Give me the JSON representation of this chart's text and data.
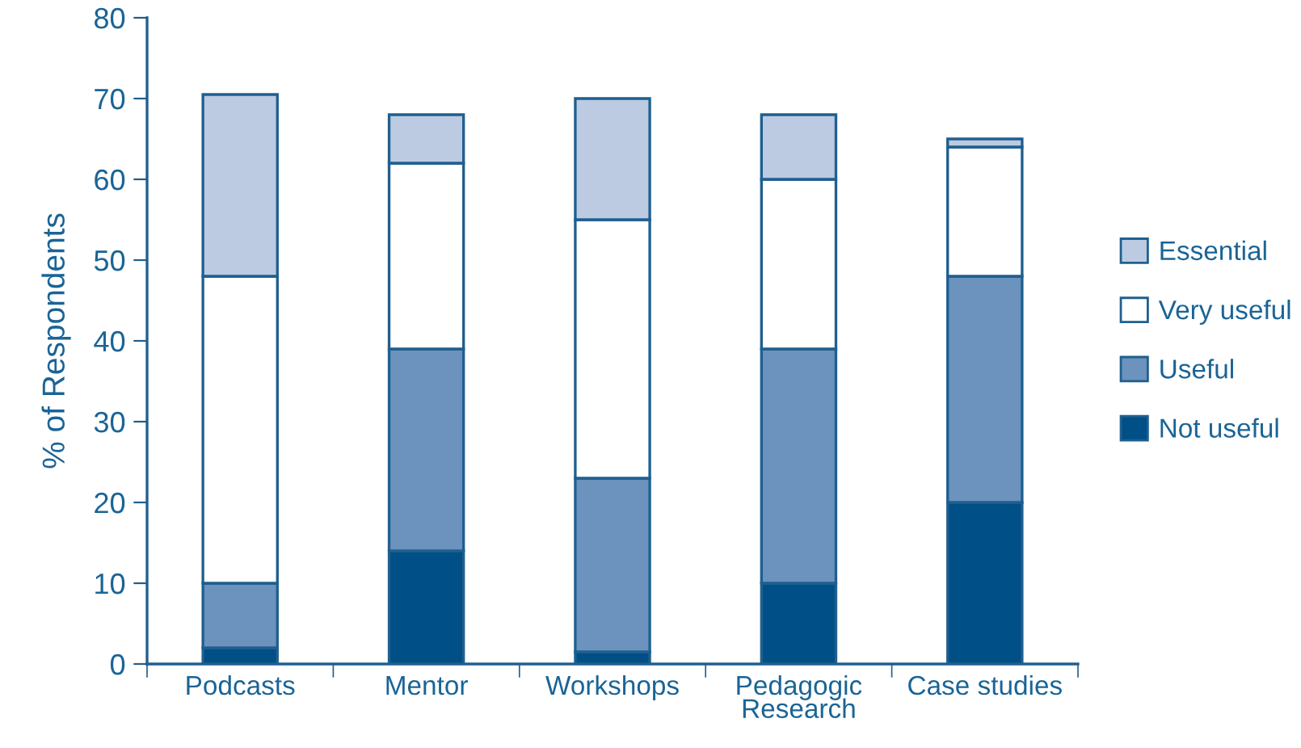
{
  "chart_data": {
    "type": "bar",
    "stacked": true,
    "ylabel": "% of Respondents",
    "categories": [
      "Podcasts",
      "Mentor",
      "Workshops",
      "Pedagogic\nResearch",
      "Case studies"
    ],
    "series": [
      {
        "name": "Not useful",
        "color": "#004f86",
        "values": [
          2,
          14,
          1.5,
          10,
          20
        ]
      },
      {
        "name": "Useful",
        "color": "#6b93bd",
        "values": [
          8,
          25,
          21.5,
          29,
          28
        ]
      },
      {
        "name": "Very useful",
        "color": "#ffffff",
        "values": [
          38,
          23,
          32,
          21,
          16
        ]
      },
      {
        "name": "Essential",
        "color": "#bccbe2",
        "values": [
          22.5,
          6,
          15,
          8,
          1
        ]
      }
    ],
    "ylim": [
      0,
      80
    ],
    "yticks": [
      0,
      10,
      20,
      30,
      40,
      50,
      60,
      70,
      80
    ],
    "grid": false,
    "legend": "right"
  }
}
